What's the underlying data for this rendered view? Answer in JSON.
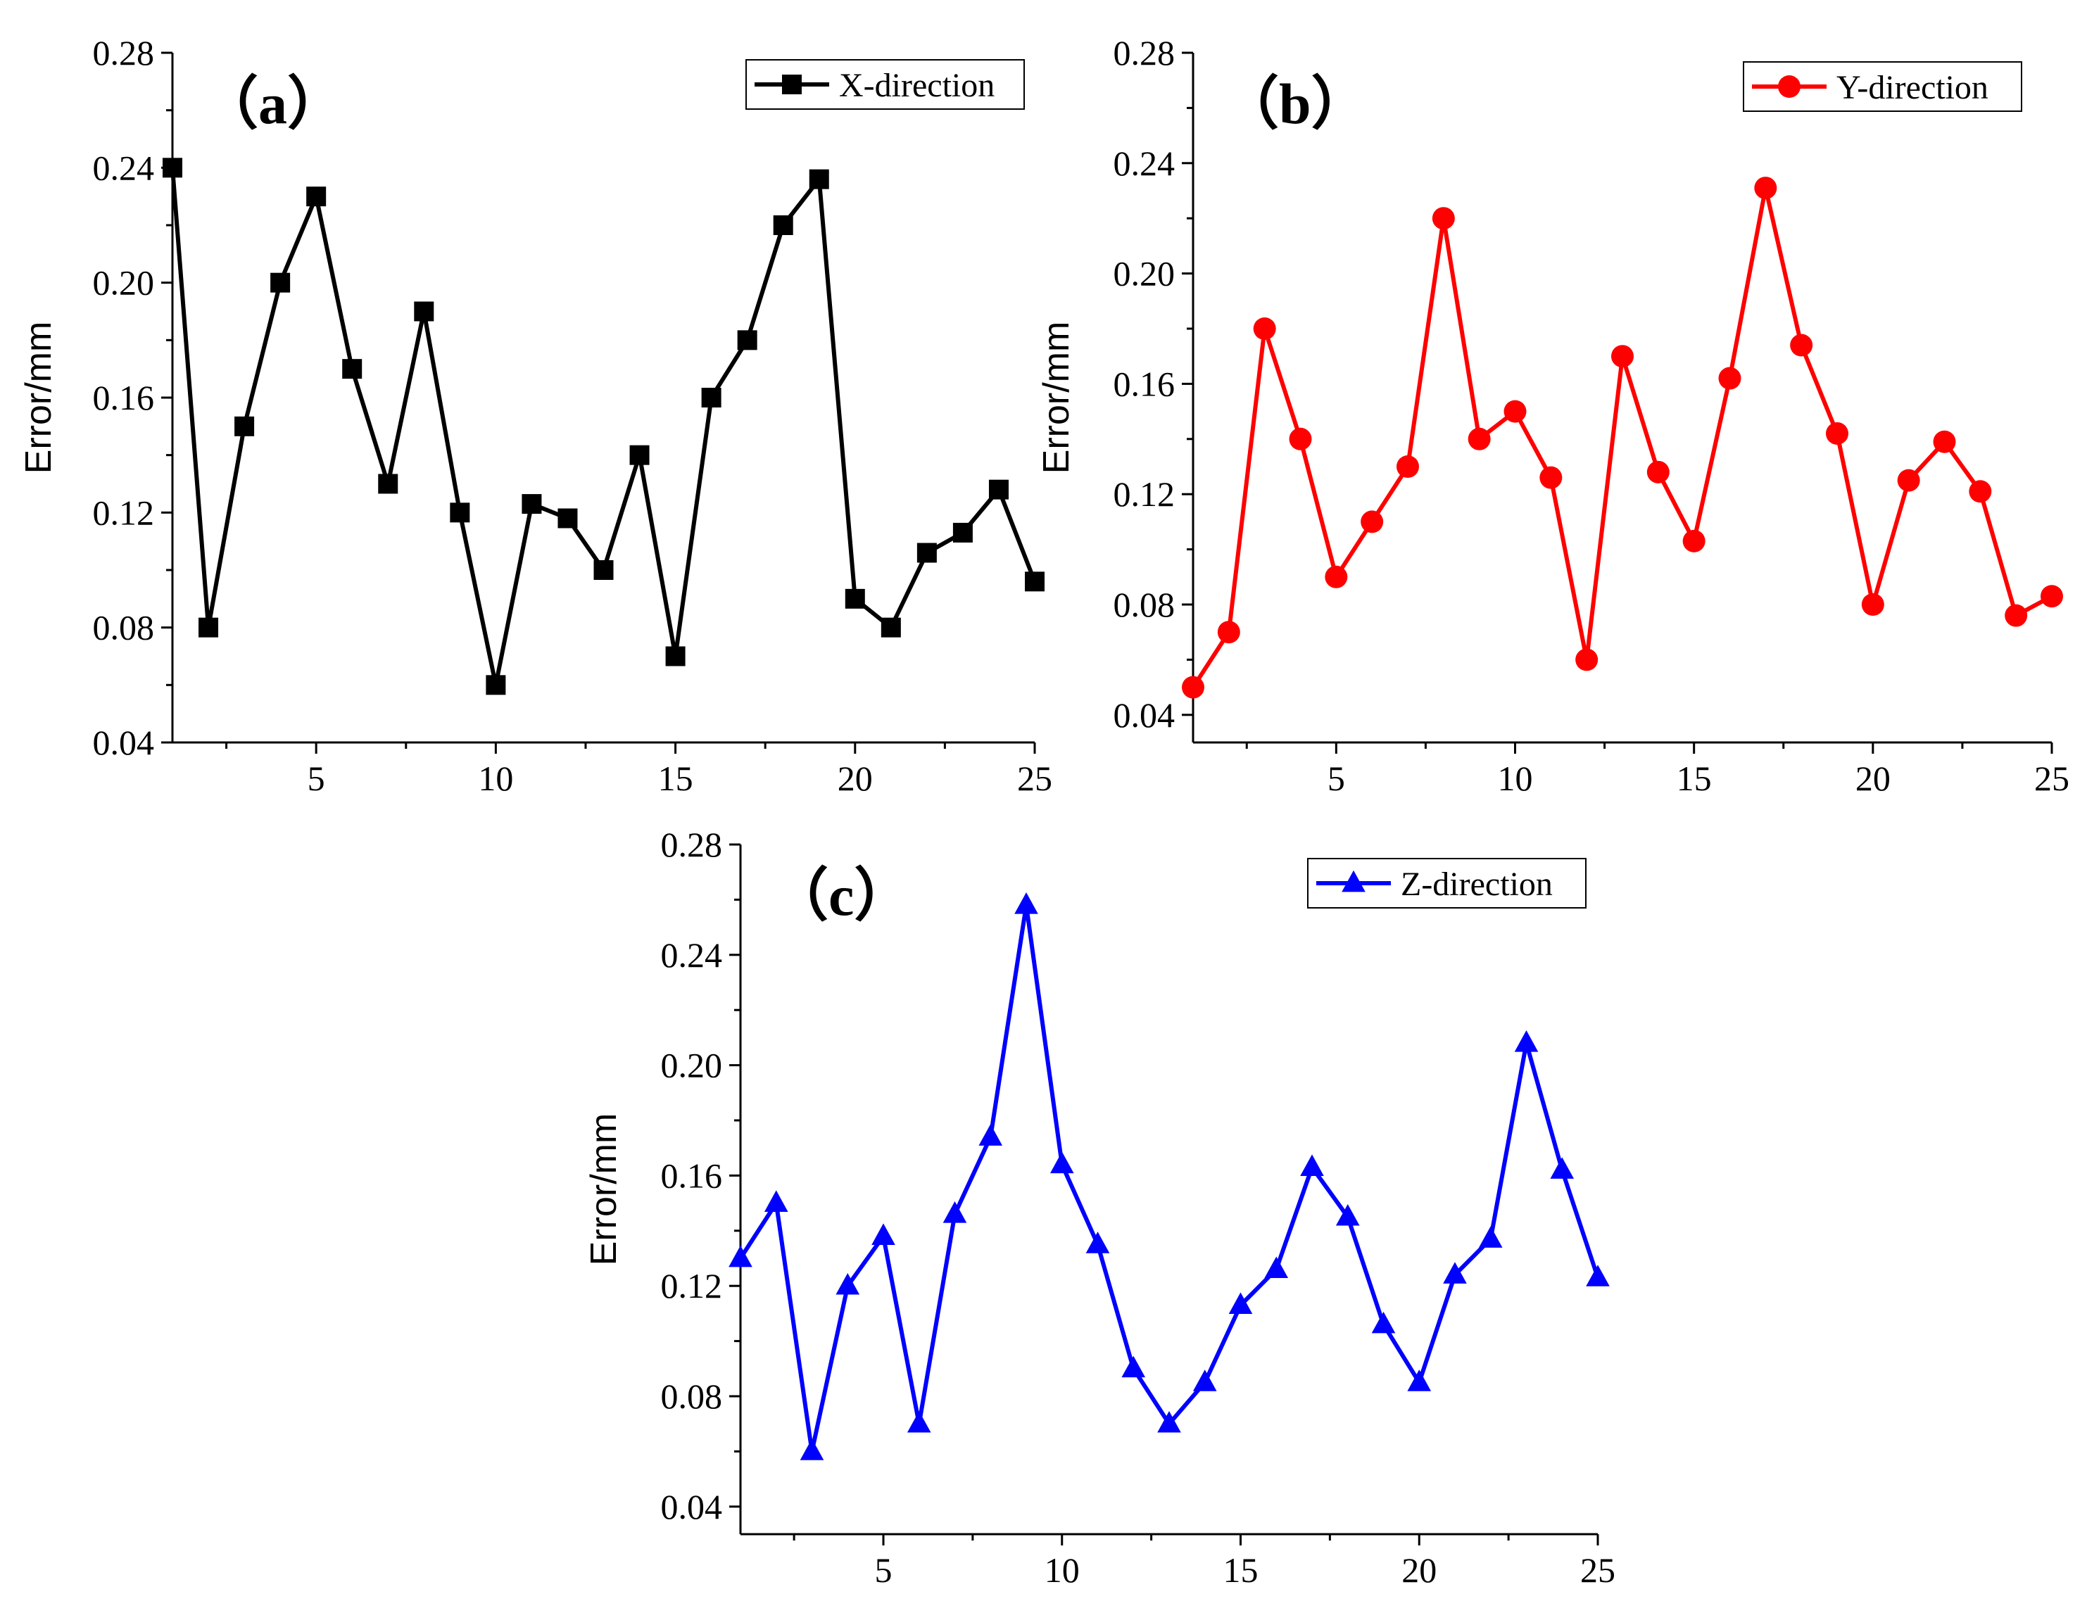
{
  "chart_data": [
    {
      "type": "line",
      "panel_label": "（a）",
      "title": "",
      "xlabel": "",
      "ylabel": "Error/mm",
      "xlim": [
        1,
        25
      ],
      "ylim": [
        0.04,
        0.28
      ],
      "xticks": [
        5,
        10,
        15,
        20,
        25
      ],
      "yticks": [
        0.04,
        0.08,
        0.12,
        0.16,
        0.2,
        0.24,
        0.28
      ],
      "ytick_labels": [
        "0.04",
        "0.08",
        "0.12",
        "0.16",
        "0.20",
        "0.24",
        "0.28"
      ],
      "legend_position": "top-right",
      "series": [
        {
          "name": "X-direction",
          "color": "#000000",
          "marker": "square",
          "x": [
            1,
            2,
            3,
            4,
            5,
            6,
            7,
            8,
            9,
            10,
            11,
            12,
            13,
            14,
            15,
            16,
            17,
            18,
            19,
            20,
            21,
            22,
            23,
            24,
            25
          ],
          "values": [
            0.24,
            0.08,
            0.15,
            0.2,
            0.23,
            0.17,
            0.13,
            0.19,
            0.12,
            0.06,
            0.123,
            0.118,
            0.1,
            0.14,
            0.07,
            0.16,
            0.18,
            0.22,
            0.236,
            0.09,
            0.08,
            0.106,
            0.113,
            0.128,
            0.096
          ]
        }
      ]
    },
    {
      "type": "line",
      "panel_label": "（b）",
      "title": "",
      "xlabel": "",
      "ylabel": "Error/mm",
      "xlim": [
        1,
        25
      ],
      "ylim": [
        0.03,
        0.28
      ],
      "xticks": [
        5,
        10,
        15,
        20,
        25
      ],
      "yticks": [
        0.04,
        0.08,
        0.12,
        0.16,
        0.2,
        0.24,
        0.28
      ],
      "ytick_labels": [
        "0.04",
        "0.08",
        "0.12",
        "0.16",
        "0.20",
        "0.24",
        "0.28"
      ],
      "legend_position": "top-right",
      "series": [
        {
          "name": "Y-direction",
          "color": "#ff0000",
          "marker": "circle",
          "x": [
            1,
            2,
            3,
            4,
            5,
            6,
            7,
            8,
            9,
            10,
            11,
            12,
            13,
            14,
            15,
            16,
            17,
            18,
            19,
            20,
            21,
            22,
            23,
            24,
            25
          ],
          "values": [
            0.05,
            0.07,
            0.18,
            0.14,
            0.09,
            0.11,
            0.13,
            0.22,
            0.14,
            0.15,
            0.126,
            0.06,
            0.17,
            0.128,
            0.103,
            0.162,
            0.231,
            0.174,
            0.142,
            0.08,
            0.125,
            0.139,
            0.121,
            0.076,
            0.083
          ]
        }
      ]
    },
    {
      "type": "line",
      "panel_label": "（c）",
      "title": "",
      "xlabel": "",
      "ylabel": "Error/mm",
      "xlim": [
        1,
        25
      ],
      "ylim": [
        0.03,
        0.28
      ],
      "xticks": [
        5,
        10,
        15,
        20,
        25
      ],
      "yticks": [
        0.04,
        0.08,
        0.12,
        0.16,
        0.2,
        0.24,
        0.28
      ],
      "ytick_labels": [
        "0.04",
        "0.08",
        "0.12",
        "0.16",
        "0.20",
        "0.24",
        "0.28"
      ],
      "legend_position": "top-right",
      "series": [
        {
          "name": "Z-direction",
          "color": "#0000ff",
          "marker": "triangle",
          "x": [
            1,
            2,
            3,
            4,
            5,
            6,
            7,
            8,
            9,
            10,
            11,
            12,
            13,
            14,
            15,
            16,
            17,
            18,
            19,
            20,
            21,
            22,
            23,
            24,
            25
          ],
          "values": [
            0.13,
            0.15,
            0.06,
            0.12,
            0.138,
            0.07,
            0.146,
            0.174,
            0.258,
            0.164,
            0.135,
            0.09,
            0.07,
            0.085,
            0.113,
            0.126,
            0.163,
            0.145,
            0.106,
            0.085,
            0.124,
            0.137,
            0.208,
            0.162,
            0.123
          ]
        }
      ]
    }
  ]
}
